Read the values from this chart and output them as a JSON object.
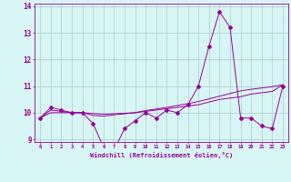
{
  "xlabel": "Windchill (Refroidissement éolien,°C)",
  "x": [
    0,
    1,
    2,
    3,
    4,
    5,
    6,
    7,
    8,
    9,
    10,
    11,
    12,
    13,
    14,
    15,
    16,
    17,
    18,
    19,
    20,
    21,
    22,
    23
  ],
  "y_main": [
    9.8,
    10.2,
    10.1,
    10.0,
    10.0,
    9.6,
    8.7,
    8.6,
    9.4,
    9.7,
    10.0,
    9.8,
    10.1,
    10.0,
    10.3,
    11.0,
    12.5,
    13.8,
    13.2,
    9.8,
    9.8,
    9.5,
    9.4,
    11.0
  ],
  "y_line1": [
    9.8,
    10.1,
    10.05,
    10.0,
    10.0,
    9.9,
    9.87,
    9.92,
    9.96,
    10.0,
    10.05,
    10.1,
    10.15,
    10.2,
    10.25,
    10.3,
    10.4,
    10.5,
    10.55,
    10.6,
    10.7,
    10.75,
    10.8,
    11.05
  ],
  "y_line2": [
    9.8,
    10.0,
    10.0,
    10.0,
    10.0,
    9.97,
    9.94,
    9.96,
    9.98,
    10.0,
    10.08,
    10.14,
    10.2,
    10.27,
    10.34,
    10.42,
    10.52,
    10.62,
    10.72,
    10.82,
    10.88,
    10.93,
    10.98,
    11.05
  ],
  "ylim": [
    8.9,
    14.1
  ],
  "yticks": [
    9,
    10,
    11,
    12,
    13,
    14
  ],
  "color": "#990099",
  "bg_color": "#d8f5f5",
  "grid_color": "#aacece"
}
